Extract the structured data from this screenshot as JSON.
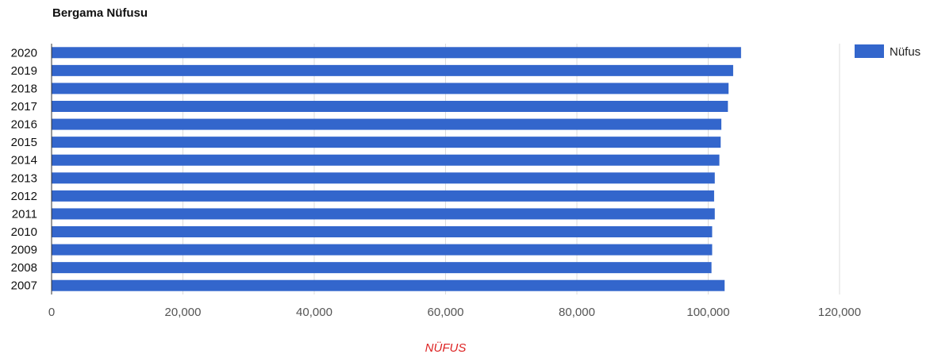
{
  "chart_data": {
    "type": "bar",
    "orientation": "horizontal",
    "title": "Bergama Nüfusu",
    "xlabel": "NÜFUS",
    "ylabel": "",
    "xlim": [
      0,
      120000
    ],
    "x_ticks": [
      0,
      20000,
      40000,
      60000,
      80000,
      100000,
      120000
    ],
    "x_tick_labels": [
      "0",
      "20,000",
      "40,000",
      "60,000",
      "80,000",
      "100,000",
      "120,000"
    ],
    "grid": true,
    "legend_position": "right",
    "categories": [
      "2020",
      "2019",
      "2018",
      "2017",
      "2016",
      "2015",
      "2014",
      "2013",
      "2012",
      "2011",
      "2010",
      "2009",
      "2008",
      "2007"
    ],
    "series": [
      {
        "name": "Nüfus",
        "color": "#3366cc",
        "values": [
          105000,
          103800,
          103100,
          103000,
          102000,
          101900,
          101700,
          101000,
          100900,
          101000,
          100600,
          100600,
          100500,
          102500
        ]
      }
    ]
  }
}
